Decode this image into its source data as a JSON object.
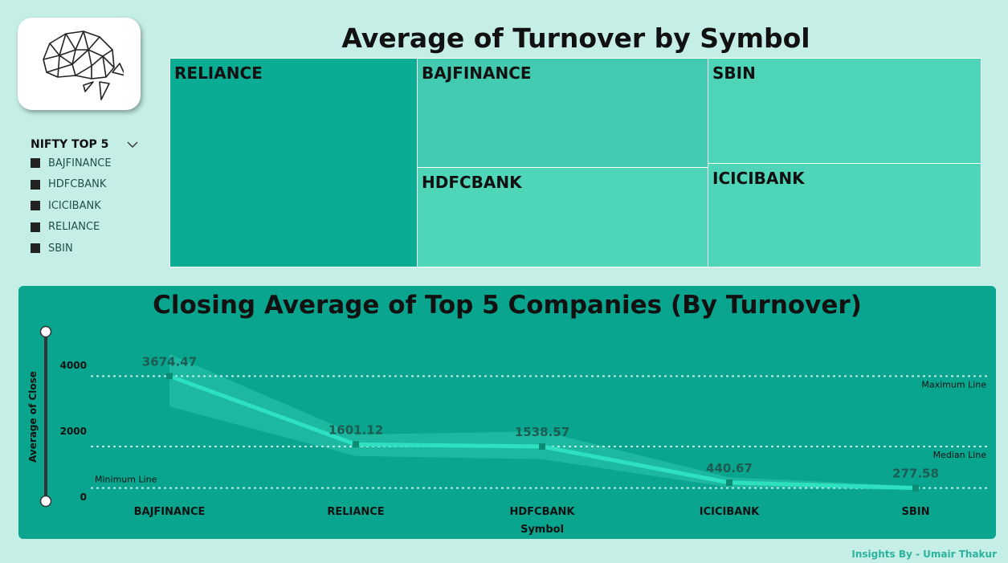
{
  "slicer": {
    "title": "NIFTY TOP 5",
    "items": [
      "BAJFINANCE",
      "HDFCBANK",
      "ICICIBANK",
      "RELIANCE",
      "SBIN"
    ]
  },
  "treemap": {
    "title": "Average of Turnover by Symbol",
    "tiles": [
      {
        "label": "RELIANCE",
        "color": "#0aac93"
      },
      {
        "label": "BAJFINANCE",
        "color": "#42cbb0"
      },
      {
        "label": "SBIN",
        "color": "#4ed5b8"
      },
      {
        "label": "HDFCBANK",
        "color": "#4fd6b9"
      },
      {
        "label": "ICICIBANK",
        "color": "#4fd6b9"
      }
    ]
  },
  "chart_data": {
    "type": "line",
    "title": "Closing Average of Top 5 Companies (By Turnover)",
    "xlabel": "Symbol",
    "ylabel": "Average of Close",
    "categories": [
      "BAJFINANCE",
      "RELIANCE",
      "HDFCBANK",
      "ICICIBANK",
      "SBIN"
    ],
    "values": [
      3674.47,
      1601.12,
      1538.57,
      440.67,
      277.58
    ],
    "value_labels": [
      "3674.47",
      "1601.12",
      "1538.57",
      "440.67",
      "277.58"
    ],
    "band_low": [
      2750,
      1250,
      1150,
      300,
      220
    ],
    "band_high": [
      4350,
      1900,
      2000,
      600,
      340
    ],
    "yticks": [
      0,
      2000,
      4000
    ],
    "ytick_labels": [
      "0",
      "2000",
      "4000"
    ],
    "ylim": [
      0,
      5000
    ],
    "reference_lines": [
      {
        "name": "Maximum Line",
        "value": 3674.47
      },
      {
        "name": "Median Line",
        "value": 1538.57
      },
      {
        "name": "Minimum Line",
        "value": 277.58
      }
    ],
    "colors": {
      "line": "#2de0c0",
      "band": "#35d0b5",
      "ref": "#bfeee5"
    }
  },
  "footer": {
    "credit": "Insights By - Umair Thakur"
  }
}
